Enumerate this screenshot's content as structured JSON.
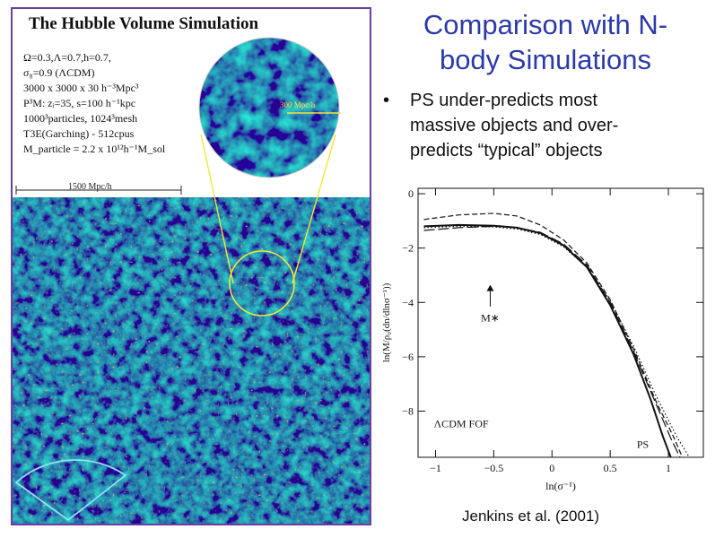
{
  "slide": {
    "title": "Comparison with N-body Simulations",
    "title_lines": [
      "Comparison with N-",
      "body Simulations"
    ],
    "bullet_symbol": "•",
    "bullets": [
      {
        "lines": [
          "PS under-predicts most",
          "massive objects and over-",
          "predicts “typical” objects"
        ]
      }
    ],
    "citation": "Jenkins et al. (2001)"
  },
  "simulation": {
    "title": "The Hubble Volume Simulation",
    "params": [
      "Ω=0.3,Λ=0.7,h=0.7,",
      "σ₈=0.9  (ΛCDM)",
      "3000 x 3000 x 30 h⁻³Mpc³",
      "P³M: zᵢ=35,  s=100 h⁻¹kpc",
      "1000³particles, 1024³mesh",
      "T3E(Garching) - 512cpus",
      "M_particle = 2.2 x 10¹²h⁻¹M_sol"
    ],
    "scale_label": "1500 Mpc/h",
    "zoom_label": "300 Mpc/h",
    "colors": {
      "frame": "#6b3fa0",
      "void": "#0d1f5c",
      "filament": "#2e9a6a",
      "node": "#e8a020",
      "zoom": "#f5e53a",
      "wedge": "#8fe0f0"
    }
  },
  "chart_data": {
    "type": "line",
    "title": "",
    "xlabel": "ln(σ⁻¹)",
    "ylabel": "ln(M/ρ₀(dn/dlnσ⁻¹))",
    "xlim": [
      -1.15,
      1.3
    ],
    "ylim": [
      -9.7,
      0.2
    ],
    "x_ticks": [
      -1,
      -0.5,
      0,
      0.5,
      1
    ],
    "x_tick_labels": [
      "−1",
      "−0.5",
      "0",
      "0.5",
      "1"
    ],
    "y_ticks": [
      0,
      -2,
      -4,
      -6,
      -8
    ],
    "y_tick_labels": [
      "0",
      "−2",
      "−4",
      "−6",
      "−8"
    ],
    "annotations": [
      {
        "text": "ΛCDM FOF",
        "x": -0.78,
        "y": -8.6
      },
      {
        "text": "PS",
        "x": 0.78,
        "y": -9.35
      },
      {
        "text": "M∗",
        "x": -0.53,
        "y": -4.7
      }
    ],
    "arrow": {
      "x": -0.53,
      "y_from": -4.15,
      "y_to": -3.35
    },
    "series": [
      {
        "style": "solid",
        "x": [
          -1.1,
          -0.8,
          -0.5,
          -0.3,
          -0.1,
          0.1,
          0.3,
          0.5,
          0.7,
          0.85,
          0.95,
          1.02
        ],
        "y": [
          -1.2,
          -1.15,
          -1.18,
          -1.25,
          -1.45,
          -1.9,
          -2.7,
          -4.1,
          -5.9,
          -7.6,
          -8.9,
          -9.7
        ]
      },
      {
        "style": "dashed",
        "x": [
          -1.1,
          -0.8,
          -0.5,
          -0.3,
          -0.1,
          0.1,
          0.3,
          0.5,
          0.7,
          0.9,
          1.05,
          1.12
        ],
        "y": [
          -0.95,
          -0.78,
          -0.72,
          -0.82,
          -1.15,
          -1.7,
          -2.55,
          -3.9,
          -5.7,
          -7.7,
          -9.0,
          -9.7
        ]
      },
      {
        "style": "long-dash",
        "x": [
          -1.1,
          -0.8,
          -0.5,
          -0.3,
          -0.1,
          0.1,
          0.3,
          0.5,
          0.7,
          0.9,
          1.02,
          1.1
        ],
        "y": [
          -1.35,
          -1.25,
          -1.2,
          -1.25,
          -1.42,
          -1.85,
          -2.62,
          -4.0,
          -5.8,
          -7.8,
          -9.0,
          -9.7
        ]
      },
      {
        "style": "dotted",
        "x": [
          -1.1,
          -0.8,
          -0.5,
          -0.3,
          -0.1,
          0.1,
          0.3,
          0.5,
          0.7,
          0.9,
          1.08,
          1.18
        ],
        "y": [
          -1.25,
          -1.2,
          -1.22,
          -1.3,
          -1.5,
          -1.95,
          -2.7,
          -3.95,
          -5.6,
          -7.5,
          -9.0,
          -9.7
        ]
      }
    ]
  }
}
